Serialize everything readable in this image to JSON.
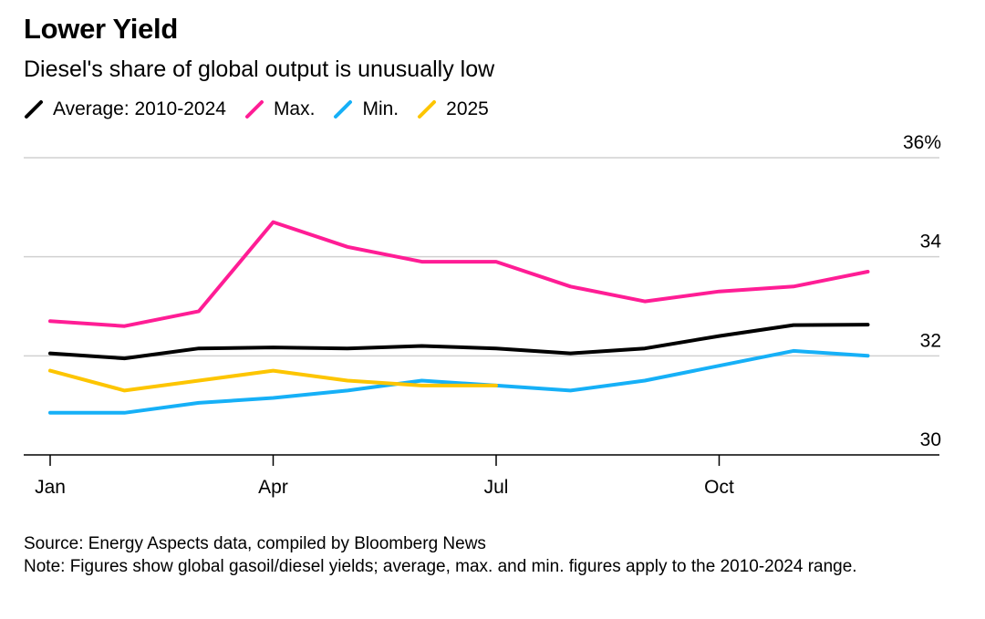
{
  "title": "Lower Yield",
  "subtitle": "Diesel's share of global output is unusually low",
  "legend": [
    {
      "label": "Average: 2010-2024",
      "color": "#000000"
    },
    {
      "label": "Max.",
      "color": "#ff1d95"
    },
    {
      "label": "Min.",
      "color": "#16b0f7"
    },
    {
      "label": "2025",
      "color": "#fdc500"
    }
  ],
  "chart_data": {
    "type": "line",
    "x": [
      "Jan",
      "Feb",
      "Mar",
      "Apr",
      "May",
      "Jun",
      "Jul",
      "Aug",
      "Sep",
      "Oct",
      "Nov",
      "Dec"
    ],
    "x_tick_labels": [
      "Jan",
      "Apr",
      "Jul",
      "Oct"
    ],
    "y_tick_labels": [
      "36%",
      "34",
      "32",
      "30"
    ],
    "ylim": [
      30,
      36
    ],
    "y_axis_side": "right",
    "grid": true,
    "legend_position": "top-left",
    "series": [
      {
        "name": "Average: 2010-2024",
        "color": "#000000",
        "values": [
          32.05,
          31.95,
          32.15,
          32.17,
          32.15,
          32.2,
          32.15,
          32.05,
          32.15,
          32.4,
          32.62,
          32.63
        ]
      },
      {
        "name": "Max.",
        "color": "#ff1d95",
        "values": [
          32.7,
          32.6,
          32.9,
          34.7,
          34.2,
          33.9,
          33.9,
          33.4,
          33.1,
          33.3,
          33.4,
          33.7
        ]
      },
      {
        "name": "Min.",
        "color": "#16b0f7",
        "values": [
          30.85,
          30.85,
          31.05,
          31.15,
          31.3,
          31.5,
          31.4,
          31.3,
          31.5,
          31.8,
          32.1,
          32.0
        ]
      },
      {
        "name": "2025",
        "color": "#fdc500",
        "values": [
          31.7,
          31.3,
          31.5,
          31.7,
          31.5,
          31.4,
          31.4,
          null,
          null,
          null,
          null,
          null
        ]
      }
    ]
  },
  "source": "Source: Energy Aspects data, compiled by Bloomberg News",
  "note": "Note: Figures show global gasoil/diesel yields; average, max. and min. figures apply to the 2010-2024 range."
}
